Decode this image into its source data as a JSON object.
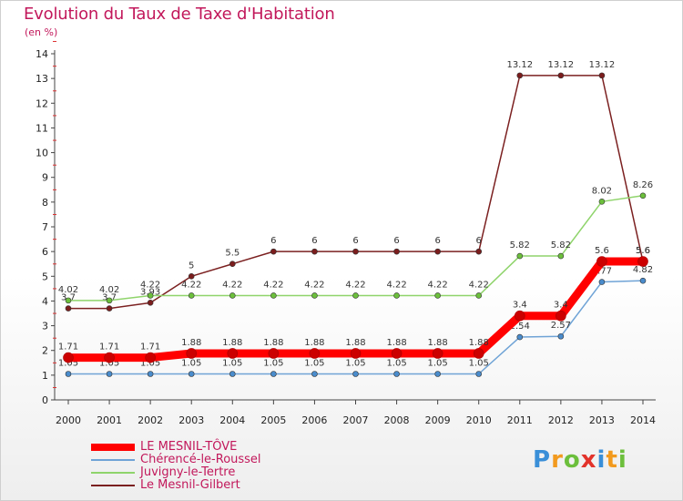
{
  "header": {
    "title": "Evolution du Taux de Taxe d'Habitation",
    "unit": "(en %)"
  },
  "brand": {
    "letters": [
      "P",
      "r",
      "o",
      "x",
      "i",
      "t",
      "i"
    ]
  },
  "chart_data": {
    "type": "line",
    "title": "Evolution du Taux de Taxe d'Habitation",
    "ylabel": "(en %)",
    "xlabel": "",
    "ylim": [
      0,
      14
    ],
    "yticks": [
      "0",
      "1",
      "2",
      "3",
      "4",
      "5",
      "6",
      "7",
      "8",
      "9",
      "10",
      "11",
      "12",
      "13",
      "14"
    ],
    "grid": false,
    "legend_position": "bottom-left",
    "x": [
      "2000",
      "2001",
      "2002",
      "2003",
      "2004",
      "2005",
      "2006",
      "2007",
      "2008",
      "2009",
      "2010",
      "2011",
      "2012",
      "2013",
      "2014"
    ],
    "series": [
      {
        "name": "Le Mesnil-Gilbert",
        "color": "#7b2020",
        "marker": "#7b1d1d",
        "values": [
          3.7,
          3.7,
          3.93,
          5,
          5.5,
          6,
          6,
          6,
          6,
          6,
          6,
          13.12,
          13.12,
          13.12,
          5.6
        ],
        "labels": [
          "3.7",
          "3.7",
          "3.93",
          "5",
          "5.5",
          "6",
          "6",
          "6",
          "6",
          "6",
          "6",
          "13.12",
          "13.12",
          "13.12",
          "5.6"
        ]
      },
      {
        "name": "Juvigny-le-Tertre",
        "color": "#8fd46b",
        "marker": "#6cbf3c",
        "values": [
          4.02,
          4.02,
          4.22,
          4.22,
          4.22,
          4.22,
          4.22,
          4.22,
          4.22,
          4.22,
          4.22,
          5.82,
          5.82,
          8.02,
          8.26
        ],
        "labels": [
          "4.02",
          "4.02",
          "4.22",
          "4.22",
          "4.22",
          "4.22",
          "4.22",
          "4.22",
          "4.22",
          "4.22",
          "4.22",
          "5.82",
          "5.82",
          "8.02",
          "8.26"
        ]
      },
      {
        "name": "Chérencé-le-Roussel",
        "color": "#6fa3d6",
        "marker": "#4a8ccc",
        "values": [
          1.05,
          1.05,
          1.05,
          1.05,
          1.05,
          1.05,
          1.05,
          1.05,
          1.05,
          1.05,
          1.05,
          2.54,
          2.57,
          4.77,
          4.82
        ],
        "labels": [
          "1.05",
          "1.05",
          "1.05",
          "1.05",
          "1.05",
          "1.05",
          "1.05",
          "1.05",
          "1.05",
          "1.05",
          "1.05",
          "2.54",
          "2.57",
          "4.77",
          "4.82"
        ]
      },
      {
        "name": "LE MESNIL-TÔVE",
        "color": "#ff0000",
        "marker": "#cc0000",
        "values": [
          1.71,
          1.71,
          1.71,
          1.88,
          1.88,
          1.88,
          1.88,
          1.88,
          1.88,
          1.88,
          1.88,
          3.4,
          3.4,
          5.6,
          5.6
        ],
        "labels": [
          "1.71",
          "1.71",
          "1.71",
          "1.88",
          "1.88",
          "1.88",
          "1.88",
          "1.88",
          "1.88",
          "1.88",
          "1.88",
          "3.4",
          "3.4",
          "5.6",
          "5.6"
        ]
      }
    ],
    "legend_order": [
      "LE MESNIL-TÔVE",
      "Chérencé-le-Roussel",
      "Juvigny-le-Tertre",
      "Le Mesnil-Gilbert"
    ]
  }
}
